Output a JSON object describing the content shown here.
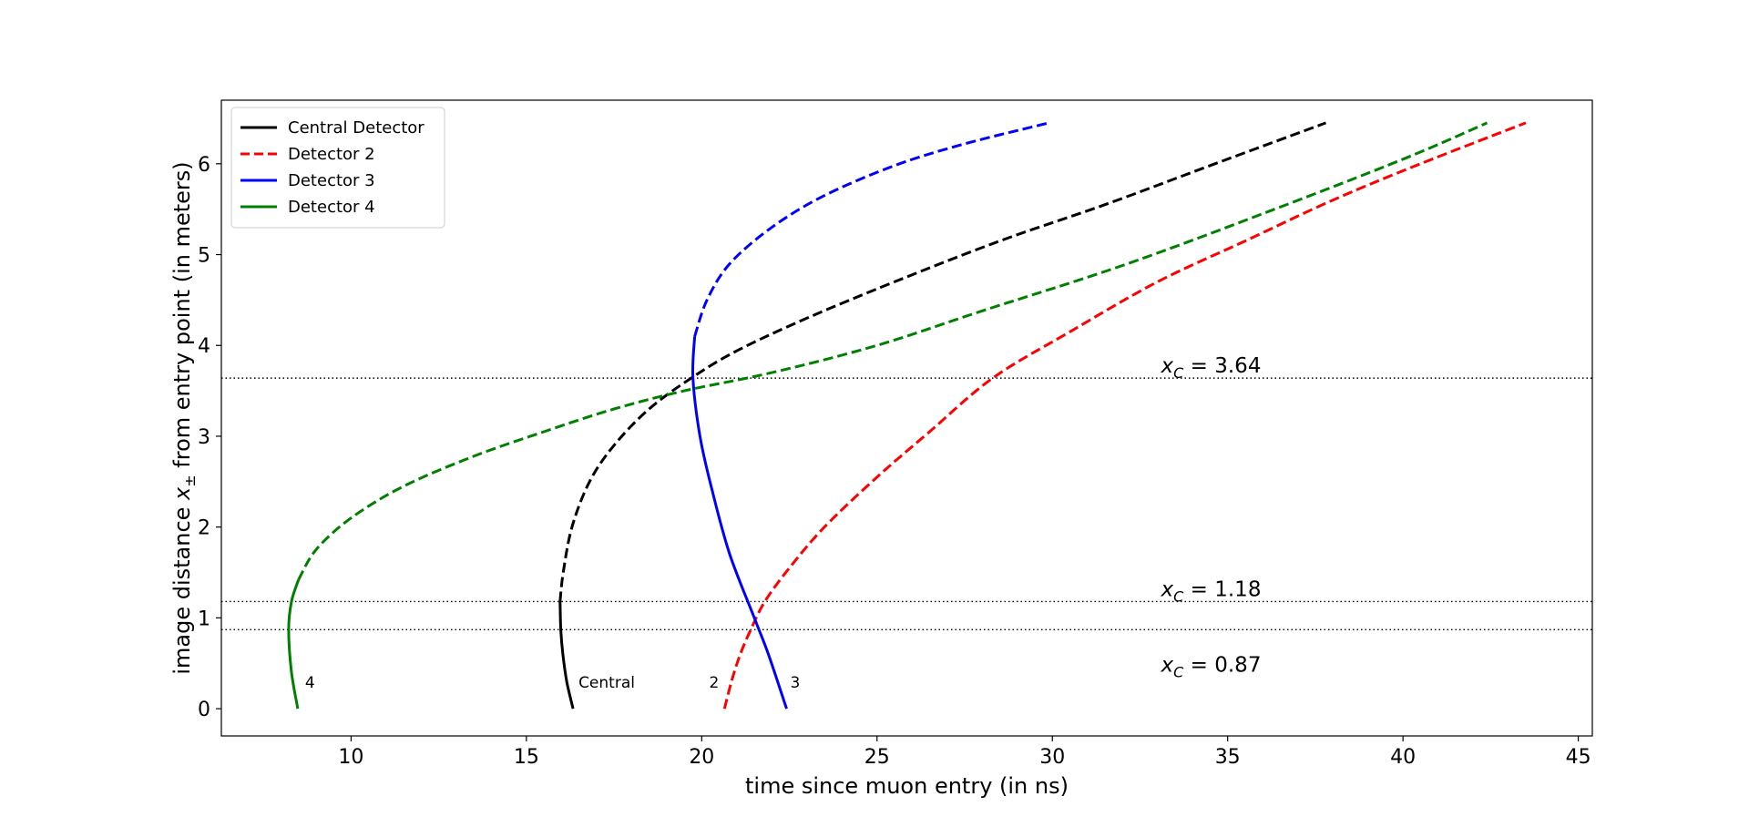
{
  "chart_data": {
    "type": "line",
    "xlabel": "time since muon entry (in ns)",
    "ylabel_parts": [
      "image distance ",
      "x",
      "±",
      " from entry point (in meters)"
    ],
    "xlim": [
      6.3,
      45.4
    ],
    "ylim": [
      -0.3,
      6.7
    ],
    "xticks": [
      10,
      15,
      20,
      25,
      30,
      35,
      40,
      45
    ],
    "yticks": [
      0,
      1,
      2,
      3,
      4,
      5,
      6
    ],
    "grid": false,
    "legend_position": "top-left",
    "series": [
      {
        "name": "Central Detector",
        "color": "#000000",
        "end_label": "Central",
        "solid": [
          [
            16.33,
            0.0
          ],
          [
            16.15,
            0.3
          ],
          [
            16.04,
            0.6
          ],
          [
            15.98,
            0.87
          ],
          [
            15.96,
            1.18
          ]
        ],
        "dashed": [
          [
            15.96,
            1.18
          ],
          [
            16.05,
            1.5
          ],
          [
            16.3,
            2.0
          ],
          [
            16.8,
            2.5
          ],
          [
            17.5,
            2.9
          ],
          [
            18.5,
            3.3
          ],
          [
            19.7,
            3.64
          ],
          [
            21.0,
            3.94
          ],
          [
            23.0,
            4.3
          ],
          [
            25.5,
            4.7
          ],
          [
            28.5,
            5.15
          ],
          [
            31.5,
            5.55
          ],
          [
            34.5,
            5.98
          ],
          [
            37.8,
            6.45
          ]
        ]
      },
      {
        "name": "Detector 2",
        "color": "#ff0000",
        "end_label": "2",
        "solid": [],
        "dashed": [
          [
            20.65,
            0.0
          ],
          [
            20.85,
            0.3
          ],
          [
            21.1,
            0.6
          ],
          [
            21.4,
            0.87
          ],
          [
            21.8,
            1.18
          ],
          [
            22.5,
            1.55
          ],
          [
            23.5,
            2.0
          ],
          [
            25.0,
            2.55
          ],
          [
            26.5,
            3.05
          ],
          [
            28.3,
            3.64
          ],
          [
            30.5,
            4.15
          ],
          [
            33.0,
            4.7
          ],
          [
            35.5,
            5.15
          ],
          [
            38.0,
            5.6
          ],
          [
            40.5,
            6.0
          ],
          [
            43.5,
            6.45
          ]
        ]
      },
      {
        "name": "Detector 3",
        "color": "#0000ff",
        "end_label": "3",
        "solid": [
          [
            22.42,
            0.0
          ],
          [
            21.9,
            0.6
          ],
          [
            21.5,
            1.0
          ],
          [
            20.8,
            1.7
          ],
          [
            20.3,
            2.4
          ],
          [
            19.95,
            3.0
          ],
          [
            19.75,
            3.64
          ],
          [
            19.8,
            4.1
          ]
        ],
        "dashed": [
          [
            19.8,
            4.1
          ],
          [
            20.15,
            4.5
          ],
          [
            20.8,
            4.9
          ],
          [
            22.0,
            5.3
          ],
          [
            23.5,
            5.65
          ],
          [
            25.5,
            5.98
          ],
          [
            27.5,
            6.22
          ],
          [
            29.9,
            6.45
          ]
        ]
      },
      {
        "name": "Detector 4",
        "color": "#008000",
        "end_label": "4",
        "solid": [
          [
            8.48,
            0.0
          ],
          [
            8.3,
            0.4
          ],
          [
            8.22,
            0.87
          ],
          [
            8.3,
            1.18
          ],
          [
            8.5,
            1.42
          ]
        ],
        "dashed": [
          [
            8.5,
            1.42
          ],
          [
            9.0,
            1.75
          ],
          [
            10.0,
            2.1
          ],
          [
            11.5,
            2.45
          ],
          [
            13.5,
            2.78
          ],
          [
            15.5,
            3.05
          ],
          [
            17.5,
            3.3
          ],
          [
            19.5,
            3.5
          ],
          [
            22.0,
            3.7
          ],
          [
            25.0,
            4.0
          ],
          [
            28.0,
            4.38
          ],
          [
            32.0,
            4.88
          ],
          [
            36.0,
            5.45
          ],
          [
            40.0,
            6.05
          ],
          [
            42.4,
            6.45
          ]
        ]
      }
    ],
    "reference_lines": [
      {
        "y": 3.64,
        "label_var": "x",
        "label_sub": "C",
        "label_value": " = 3.64",
        "label_pos": "above"
      },
      {
        "y": 1.18,
        "label_var": "x",
        "label_sub": "C",
        "label_value": " = 1.18",
        "label_pos": "above"
      },
      {
        "y": 0.87,
        "label_var": "x",
        "label_sub": "C",
        "label_value": " = 0.87",
        "label_pos": "below"
      }
    ]
  }
}
